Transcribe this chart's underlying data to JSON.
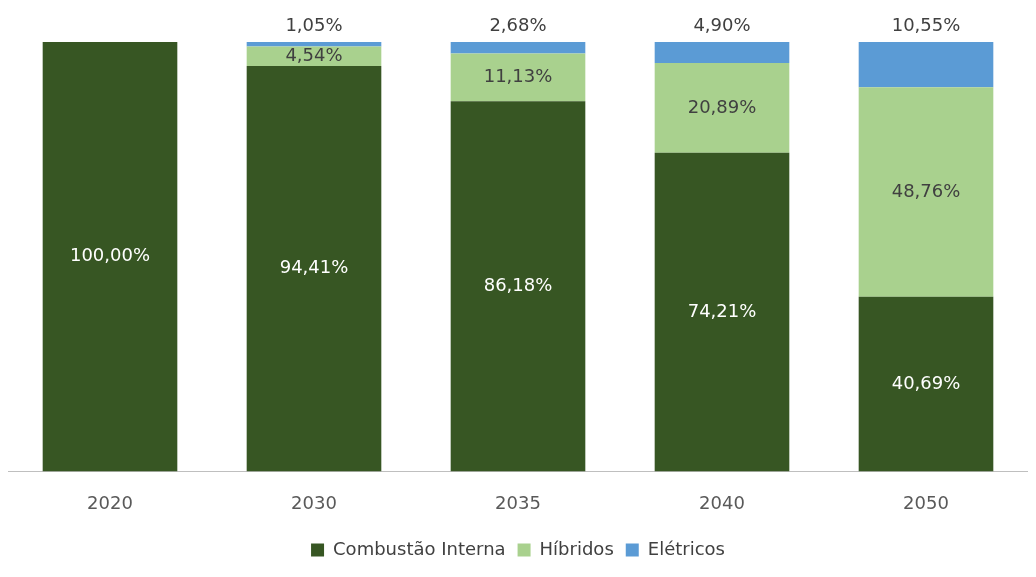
{
  "chart_data": {
    "type": "bar",
    "stacked": true,
    "categories": [
      "2020",
      "2030",
      "2035",
      "2040",
      "2050"
    ],
    "series": [
      {
        "name": "Combustão Interna",
        "color": "#375623",
        "values": [
          100,
          94.41,
          86.18,
          74.21,
          40.69
        ],
        "value_labels": [
          "100,00%",
          "94,41%",
          "86,18%",
          "74,21%",
          "40,69%"
        ]
      },
      {
        "name": "Híbridos",
        "color": "#a9d18e",
        "values": [
          0,
          4.54,
          11.13,
          20.89,
          48.76
        ],
        "value_labels": [
          null,
          "4,54%",
          "11,13%",
          "20,89%",
          "48,76%"
        ]
      },
      {
        "name": "Elétricos",
        "color": "#5b9bd5",
        "values": [
          0,
          1.05,
          2.68,
          4.9,
          10.55
        ],
        "value_labels": [
          null,
          "1,05%",
          "2,68%",
          "4,90%",
          "10,55%"
        ]
      }
    ],
    "legend": "bottom",
    "grid": false
  }
}
